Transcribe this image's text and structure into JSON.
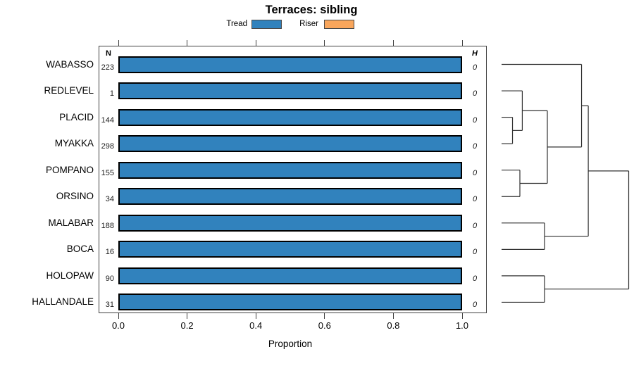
{
  "chart_data": {
    "type": "bar",
    "title": "Terraces: sibling",
    "xlabel": "Proportion",
    "xlim": [
      0,
      1
    ],
    "xticks": [
      "0.0",
      "0.2",
      "0.4",
      "0.6",
      "0.8",
      "1.0"
    ],
    "grid": false,
    "legend_position": "top",
    "legend": [
      {
        "label": "Tread",
        "color": "#3182BD"
      },
      {
        "label": "Riser",
        "color": "#F9A65C"
      }
    ],
    "columns": {
      "count_header": "N",
      "height_header": "H"
    },
    "rows": [
      {
        "label": "WABASSO",
        "n": "223",
        "tread": 1.0,
        "riser": 0.0,
        "h": "0"
      },
      {
        "label": "REDLEVEL",
        "n": "1",
        "tread": 1.0,
        "riser": 0.0,
        "h": "0"
      },
      {
        "label": "PLACID",
        "n": "144",
        "tread": 1.0,
        "riser": 0.0,
        "h": "0"
      },
      {
        "label": "MYAKKA",
        "n": "298",
        "tread": 1.0,
        "riser": 0.0,
        "h": "0"
      },
      {
        "label": "POMPANO",
        "n": "155",
        "tread": 1.0,
        "riser": 0.0,
        "h": "0"
      },
      {
        "label": "ORSINO",
        "n": "34",
        "tread": 1.0,
        "riser": 0.0,
        "h": "0"
      },
      {
        "label": "MALABAR",
        "n": "188",
        "tread": 1.0,
        "riser": 0.0,
        "h": "0"
      },
      {
        "label": "BOCA",
        "n": "16",
        "tread": 1.0,
        "riser": 0.0,
        "h": "0"
      },
      {
        "label": "HOLOPAW",
        "n": "90",
        "tread": 1.0,
        "riser": 0.0,
        "h": "0"
      },
      {
        "label": "HALLANDALE",
        "n": "31",
        "tread": 1.0,
        "riser": 0.0,
        "h": "0"
      }
    ],
    "dendrogram": {
      "orientation": "leaves-left-root-right",
      "leaves": [
        "WABASSO",
        "REDLEVEL",
        "PLACID",
        "MYAKKA",
        "POMPANO",
        "ORSINO",
        "MALABAR",
        "BOCA",
        "HOLOPAW",
        "HALLANDALE"
      ],
      "merges": [
        {
          "id": "A",
          "children": [
            "PLACID",
            "MYAKKA"
          ],
          "height": 0.086
        },
        {
          "id": "B",
          "children": [
            "REDLEVEL",
            "A"
          ],
          "height": 0.163
        },
        {
          "id": "C",
          "children": [
            "POMPANO",
            "ORSINO"
          ],
          "height": 0.144
        },
        {
          "id": "D",
          "children": [
            "B",
            "C"
          ],
          "height": 0.36
        },
        {
          "id": "E",
          "children": [
            "WABASSO",
            "D"
          ],
          "height": 0.629
        },
        {
          "id": "F",
          "children": [
            "MALABAR",
            "BOCA"
          ],
          "height": 0.338
        },
        {
          "id": "G",
          "children": [
            "E",
            "F"
          ],
          "height": 0.682
        },
        {
          "id": "H",
          "children": [
            "HOLOPAW",
            "HALLANDALE"
          ],
          "height": 0.338
        },
        {
          "id": "R",
          "children": [
            "G",
            "H"
          ],
          "height": 1.0
        }
      ]
    }
  }
}
